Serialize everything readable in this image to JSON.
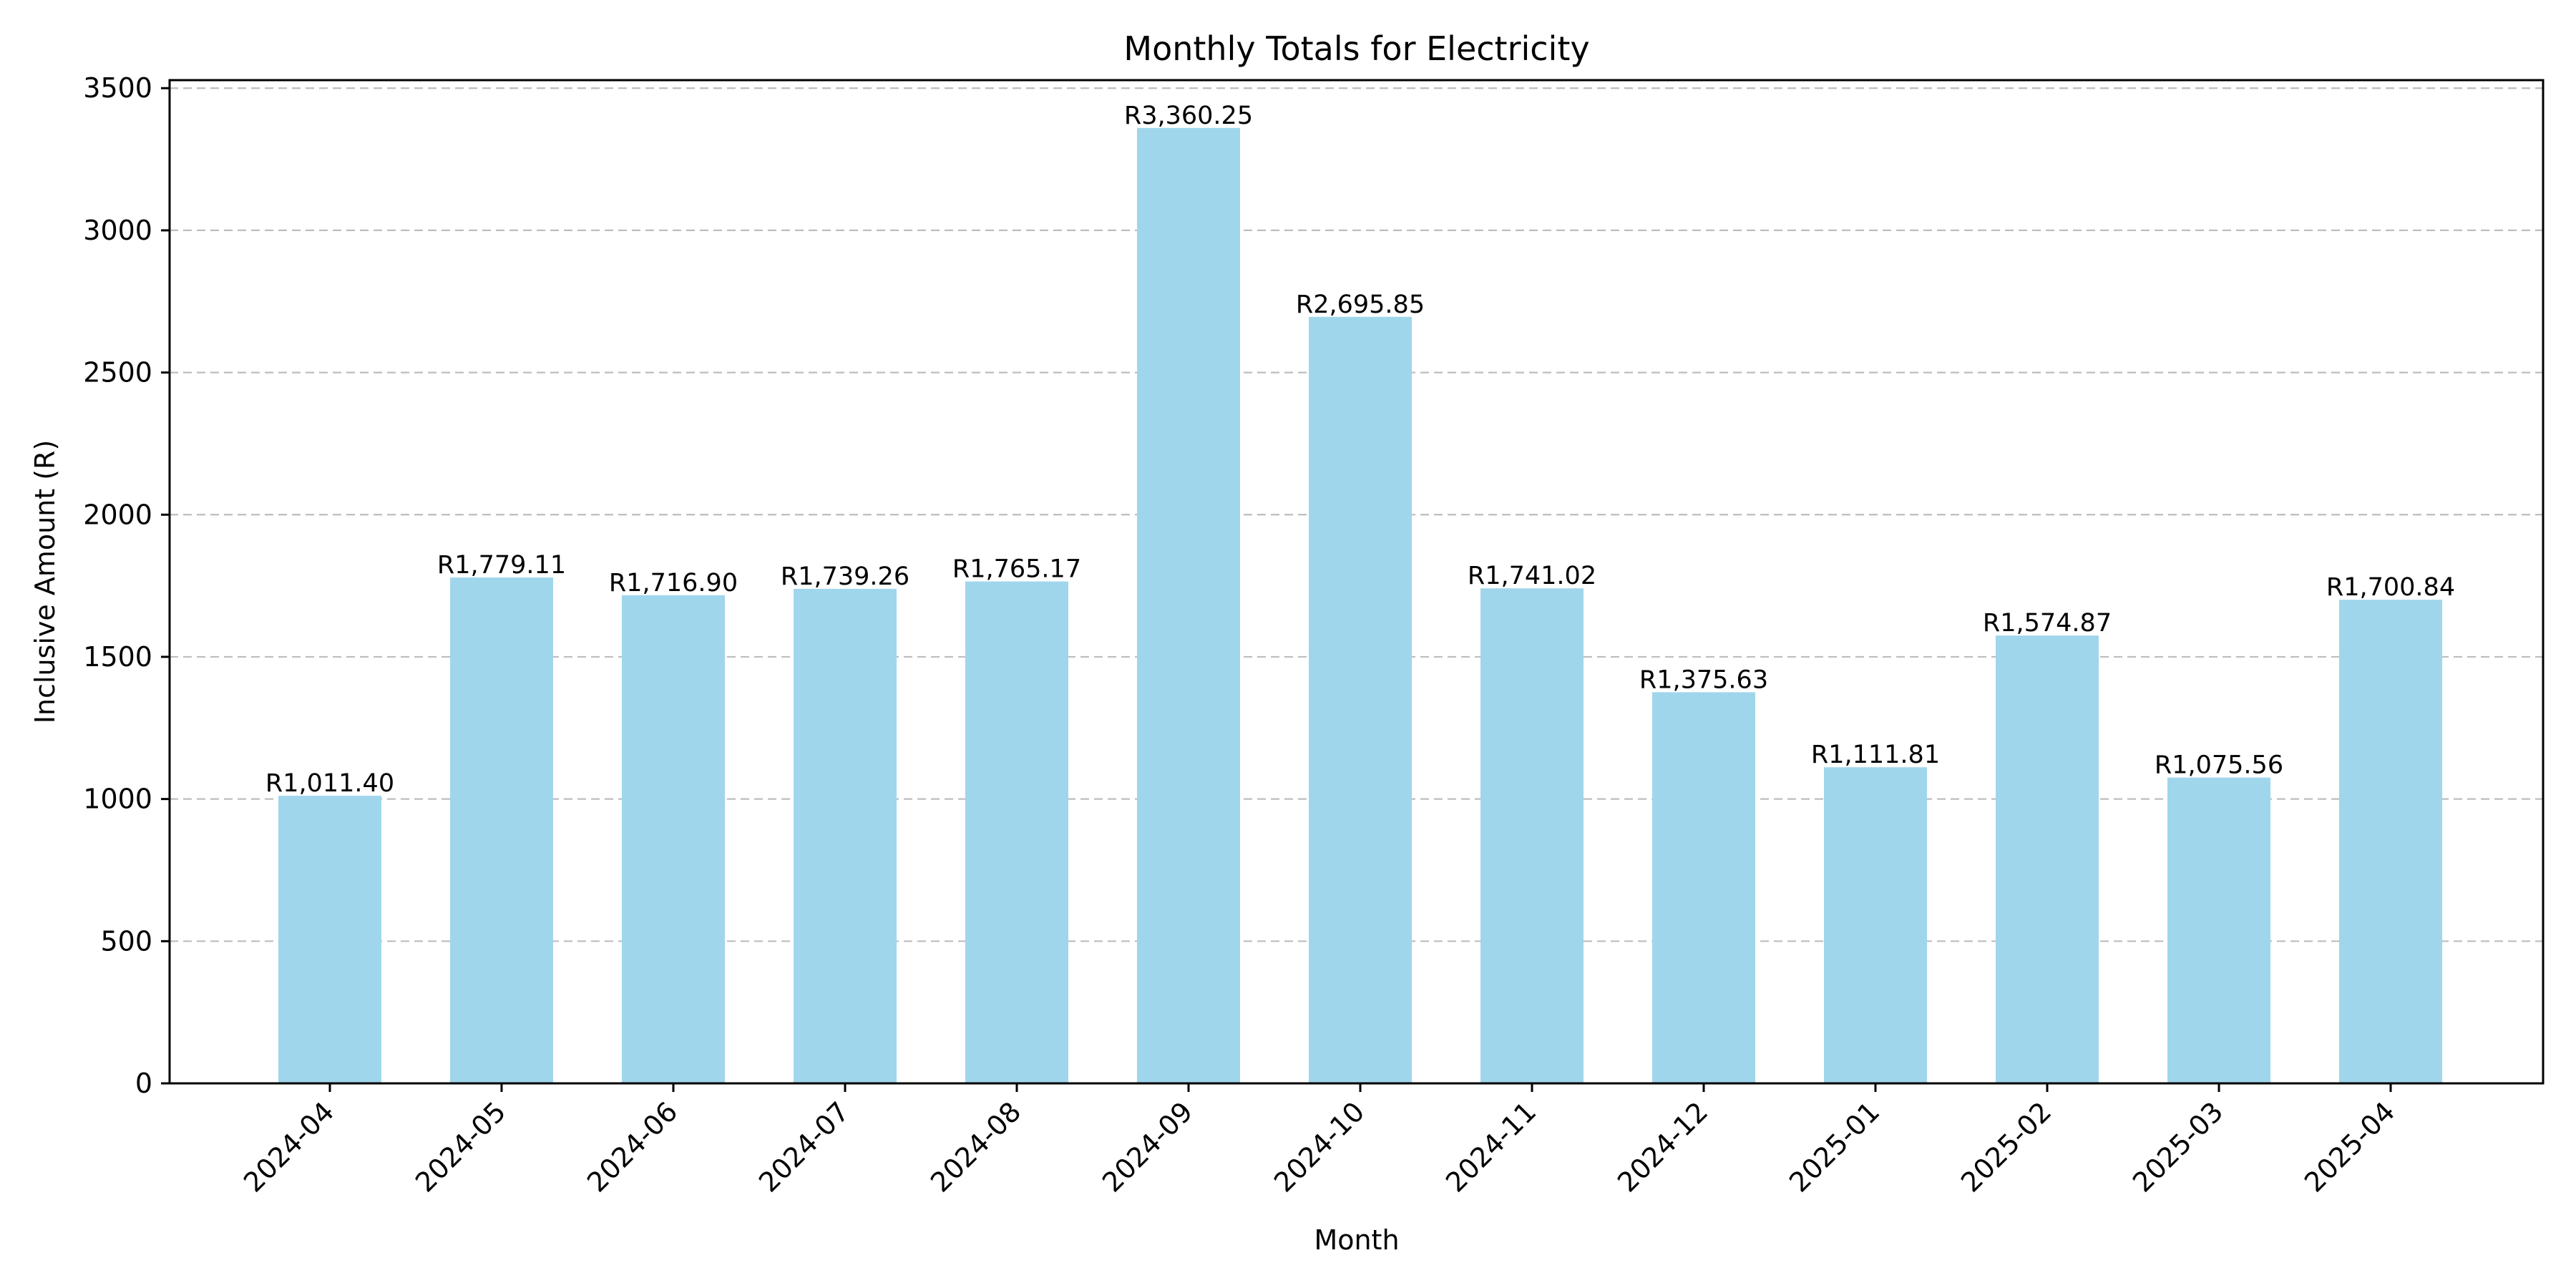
{
  "chart_data": {
    "type": "bar",
    "title": "Monthly Totals for Electricity",
    "xlabel": "Month",
    "ylabel": "Inclusive Amount (R)",
    "categories": [
      "2024-04",
      "2024-05",
      "2024-06",
      "2024-07",
      "2024-08",
      "2024-09",
      "2024-10",
      "2024-11",
      "2024-12",
      "2025-01",
      "2025-02",
      "2025-03",
      "2025-04"
    ],
    "values": [
      1011.4,
      1779.11,
      1716.9,
      1739.26,
      1765.17,
      3360.25,
      2695.85,
      1741.02,
      1375.63,
      1111.81,
      1574.87,
      1075.56,
      1700.84
    ],
    "value_labels": [
      "R1,011.40",
      "R1,779.11",
      "R1,716.90",
      "R1,739.26",
      "R1,765.17",
      "R3,360.25",
      "R2,695.85",
      "R1,741.02",
      "R1,375.63",
      "R1,111.81",
      "R1,574.87",
      "R1,075.56",
      "R1,700.84"
    ],
    "ylim": [
      0,
      3528.26
    ],
    "yticks": [
      0,
      500,
      1000,
      1500,
      2000,
      2500,
      3000,
      3500
    ],
    "ytick_labels": [
      "0",
      "500",
      "1000",
      "1500",
      "2000",
      "2500",
      "3000",
      "3500"
    ],
    "grid": "y-dashed",
    "bar_color": "#a0d6ec",
    "grid_color": "#bdbdbd"
  }
}
